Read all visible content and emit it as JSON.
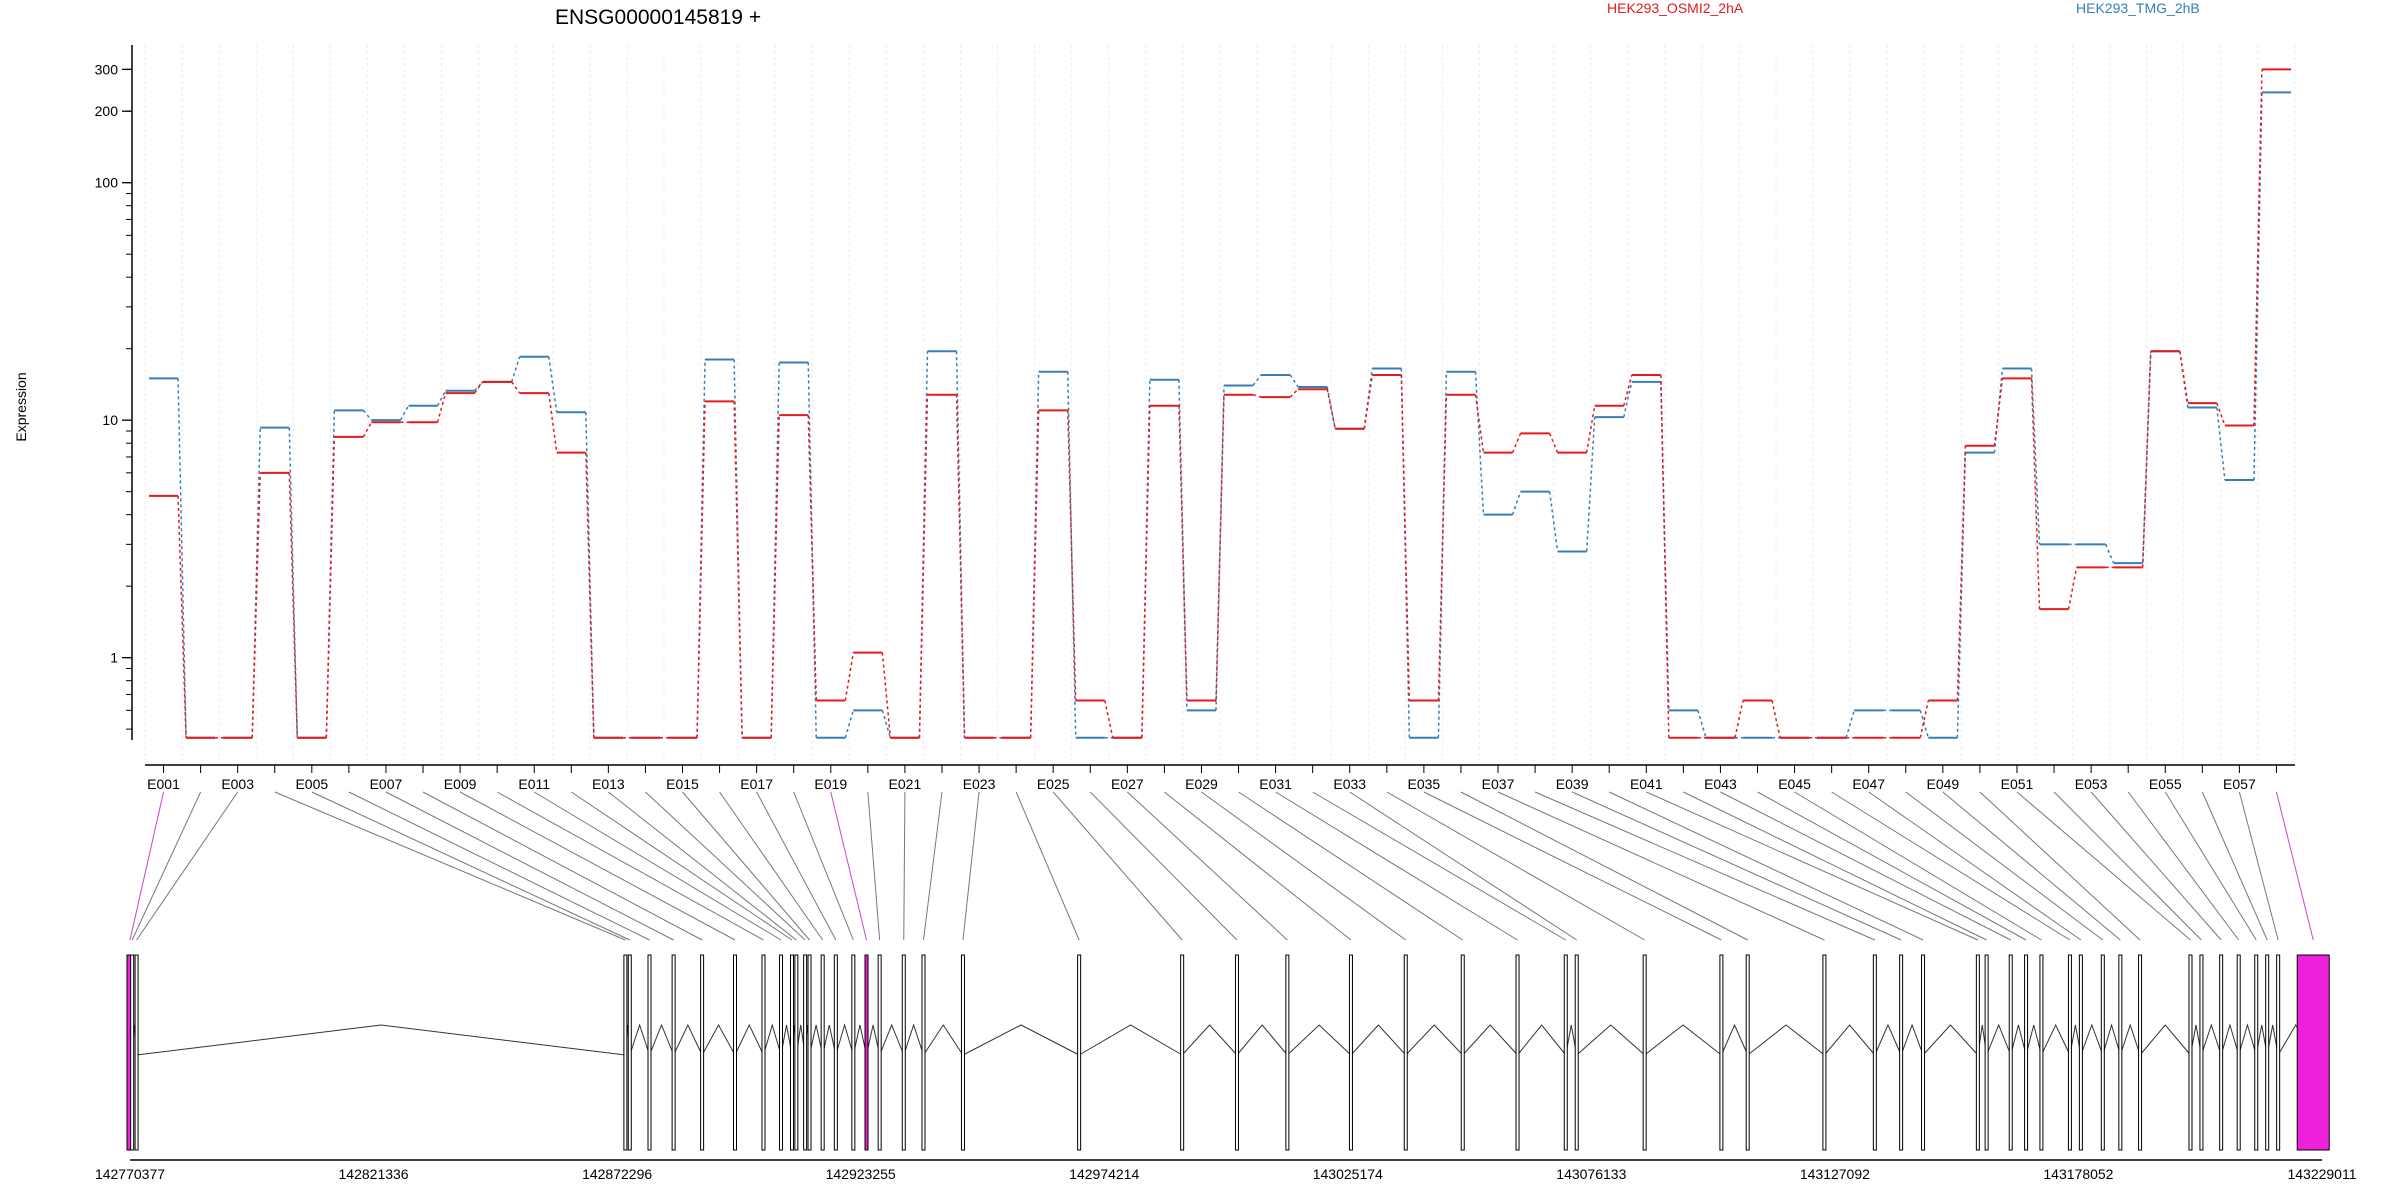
{
  "chart_data": {
    "type": "line",
    "title": "ENSG00000145819 +",
    "ylabel": "Expression",
    "yscale": "log",
    "ylim": [
      0.45,
      380
    ],
    "yticks": [
      "1",
      "10",
      "100",
      "200",
      "300"
    ],
    "series": [
      {
        "name": "HEK293_OSMI2_2hA",
        "color": "#e41a1c",
        "values": [
          4.8,
          0.46,
          0.46,
          6.0,
          0.46,
          8.5,
          9.8,
          9.8,
          13.0,
          14.5,
          13.0,
          7.3,
          0.46,
          0.46,
          0.46,
          12.0,
          0.46,
          10.5,
          0.66,
          1.05,
          0.46,
          12.8,
          0.46,
          0.46,
          11.0,
          0.66,
          0.46,
          11.5,
          0.66,
          12.8,
          12.5,
          13.5,
          9.2,
          15.5,
          0.66,
          12.8,
          7.3,
          8.8,
          7.3,
          11.5,
          15.5,
          0.46,
          0.46,
          0.66,
          0.46,
          0.46,
          0.46,
          0.46,
          0.66,
          7.8,
          15.0,
          1.6,
          2.4,
          2.4,
          19.5,
          11.8,
          9.5,
          300
        ]
      },
      {
        "name": "HEK293_TMG_2hB",
        "color": "#377eb8",
        "values": [
          15.0,
          0.46,
          0.46,
          9.3,
          0.46,
          11.0,
          10.0,
          11.5,
          13.3,
          14.5,
          18.5,
          10.8,
          0.46,
          0.46,
          0.46,
          18.0,
          0.46,
          17.5,
          0.46,
          0.6,
          0.46,
          19.5,
          0.46,
          0.46,
          16.0,
          0.46,
          0.46,
          14.8,
          0.6,
          14.0,
          15.5,
          13.8,
          9.2,
          16.5,
          0.46,
          16.0,
          4.0,
          5.0,
          2.8,
          10.3,
          14.5,
          0.6,
          0.46,
          0.46,
          0.46,
          0.46,
          0.6,
          0.6,
          0.46,
          7.3,
          16.5,
          3.0,
          3.0,
          2.5,
          19.5,
          11.3,
          5.6,
          240
        ]
      }
    ],
    "exon_tick_labels": [
      "E001",
      "E003",
      "E005",
      "E007",
      "E009",
      "E011",
      "E013",
      "E015",
      "E017",
      "E019",
      "E021",
      "E023",
      "E025",
      "E027",
      "E029",
      "E031",
      "E033",
      "E035",
      "E037",
      "E039",
      "E041",
      "E043",
      "E045",
      "E047",
      "E049",
      "E051",
      "E053",
      "E055",
      "E057"
    ],
    "exon_coord_fraction": [
      0.0,
      0.001,
      0.003,
      0.226,
      0.228,
      0.237,
      0.248,
      0.261,
      0.276,
      0.289,
      0.297,
      0.302,
      0.304,
      0.308,
      0.31,
      0.316,
      0.322,
      0.33,
      0.336,
      0.342,
      0.353,
      0.362,
      0.38,
      0.433,
      0.48,
      0.505,
      0.528,
      0.557,
      0.582,
      0.608,
      0.633,
      0.655,
      0.66,
      0.691,
      0.726,
      0.738,
      0.773,
      0.796,
      0.808,
      0.818,
      0.843,
      0.847,
      0.858,
      0.865,
      0.872,
      0.885,
      0.89,
      0.9,
      0.908,
      0.917,
      0.94,
      0.945,
      0.954,
      0.962,
      0.97,
      0.975,
      0.98,
      0.996
    ],
    "flagged_exons": [
      0,
      18,
      57
    ],
    "genomic_axis_labels": [
      "142770377",
      "142821336",
      "142872296",
      "142923255",
      "142974214",
      "143025174",
      "143076133",
      "143127092",
      "143178052",
      "143229011"
    ],
    "legend": [
      "HEK293_OSMI2_2hA",
      "HEK293_TMG_2hB"
    ]
  }
}
